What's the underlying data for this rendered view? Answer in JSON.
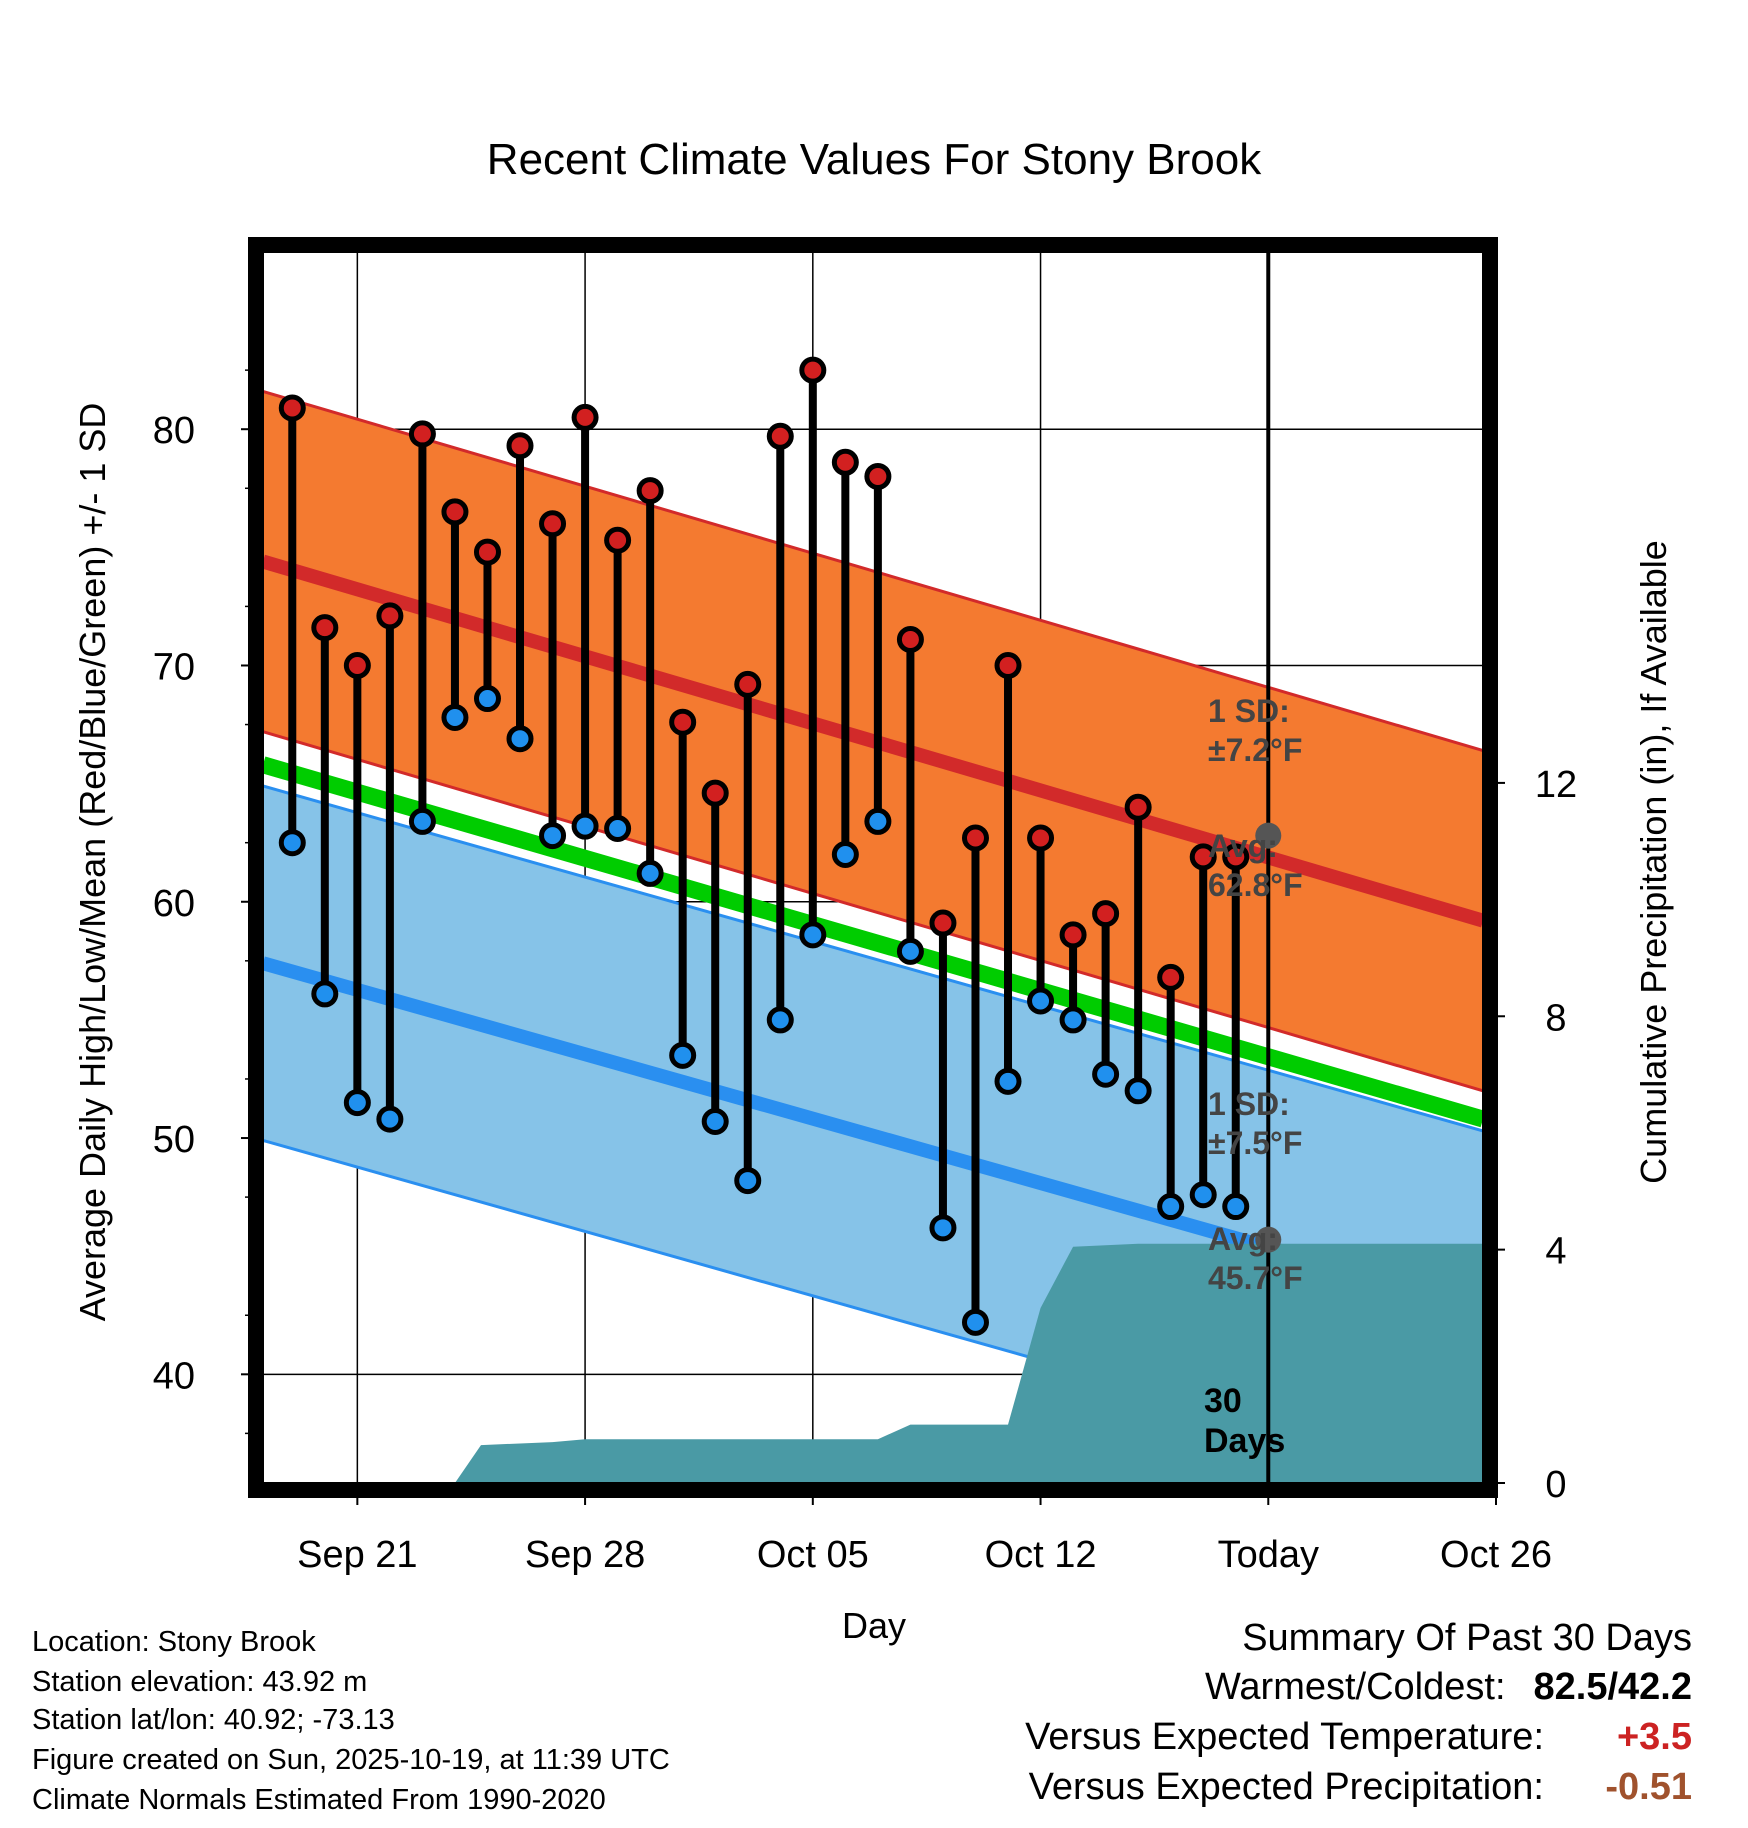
{
  "chart_data": {
    "type": "range-line",
    "title": "Recent Climate Values For Stony Brook",
    "xlabel": "Day",
    "ylabel_left": "Average Daily High/Low/Mean (Red/Blue/Green) +/- 1 SD",
    "ylabel_right": "Cumulative Precipitation (in), If Available",
    "xlim": [
      -2.9,
      34.6
    ],
    "ylim_left": [
      35.4,
      87.5
    ],
    "ylim_right": [
      0,
      21.1
    ],
    "x_ticks": [
      {
        "x": 0,
        "label": "Sep 21"
      },
      {
        "x": 7,
        "label": "Sep 28"
      },
      {
        "x": 14,
        "label": "Oct 05"
      },
      {
        "x": 21,
        "label": "Oct 12"
      },
      {
        "x": 28,
        "label": "Today"
      },
      {
        "x": 35,
        "label": "Oct 26"
      }
    ],
    "y_ticks_left": [
      40,
      50,
      60,
      70,
      80
    ],
    "y_ticks_right": [
      0,
      4,
      8,
      12
    ],
    "today_x": 28,
    "normals": {
      "x": [
        -2.9,
        34.6
      ],
      "high_mean": [
        74.4,
        59.2
      ],
      "high_sd": 7.2,
      "low_mean": [
        57.4,
        42.8
      ],
      "low_sd": 7.5,
      "daily_mean": [
        65.8,
        50.8
      ]
    },
    "daily": {
      "x": [
        -2,
        -1,
        0,
        1,
        2,
        3,
        4,
        5,
        6,
        7,
        8,
        9,
        10,
        11,
        12,
        13,
        14,
        15,
        16,
        17,
        18,
        19,
        20,
        21,
        22,
        23,
        24,
        25,
        26,
        27
      ],
      "high": [
        80.9,
        71.6,
        70.0,
        72.1,
        79.8,
        76.5,
        74.8,
        79.3,
        76.0,
        80.5,
        75.3,
        77.4,
        67.6,
        64.6,
        69.2,
        79.7,
        82.5,
        78.6,
        78.0,
        71.1,
        59.1,
        62.7,
        70.0,
        62.7,
        58.6,
        59.5,
        64.0,
        56.8,
        61.9,
        61.9
      ],
      "low": [
        62.5,
        56.1,
        51.5,
        50.8,
        63.4,
        67.8,
        68.6,
        66.9,
        62.8,
        63.2,
        63.1,
        61.2,
        53.5,
        50.7,
        48.2,
        55.0,
        58.6,
        62.0,
        63.4,
        57.9,
        46.2,
        42.2,
        52.4,
        55.8,
        55.0,
        52.7,
        52.0,
        47.1,
        47.6,
        47.1
      ]
    },
    "precip_cumulative": {
      "x": [
        -2.9,
        3.0,
        3.8,
        6.0,
        7.0,
        12.0,
        16.0,
        17.0,
        19.0,
        20.0,
        21.0,
        22.0,
        24.0,
        34.6
      ],
      "values": [
        0,
        0,
        0.65,
        0.7,
        0.75,
        0.75,
        0.75,
        1.0,
        1.0,
        1.0,
        3.0,
        4.05,
        4.1,
        4.1
      ]
    },
    "colors": {
      "high_band": "#f47a30",
      "high_line": "#d22a2a",
      "low_band": "#86c3e8",
      "low_line": "#2a8ff0",
      "mean_line": "#00cc00",
      "precip": "#4a9aa5",
      "high_marker": "#d22020",
      "low_marker": "#2090ee",
      "today_marker": "#555555"
    },
    "annotations": {
      "high_sd_title": "1 SD:",
      "high_sd_value": "±7.2°F",
      "high_avg_title": "Avg:",
      "high_avg_value": "62.8°F",
      "low_sd_title": "1 SD:",
      "low_sd_value": "±7.5°F",
      "low_avg_title": "Avg:",
      "low_avg_value": "45.7°F",
      "days_number": "30",
      "days_word": "Days"
    },
    "today_high_avg": 62.8,
    "today_low_avg": 45.7
  },
  "info": {
    "location": "Location: Stony Brook",
    "elevation": "Station elevation: 43.92 m",
    "latlon": "Station lat/lon: 40.92; -73.13",
    "created": "Figure created on Sun, 2025-10-19, at 11:39 UTC",
    "normals": "Climate Normals Estimated From 1990-2020"
  },
  "summary": {
    "title": "Summary Of Past 30 Days",
    "warmest_label": "Warmest/Coldest:",
    "warmest_value": "82.5/42.2",
    "temp_label": "Versus Expected Temperature:",
    "temp_value": "+3.5",
    "temp_color": "#cc2222",
    "precip_label": "Versus Expected Precipitation:",
    "precip_value": "-0.51",
    "precip_color": "#a0522d"
  }
}
